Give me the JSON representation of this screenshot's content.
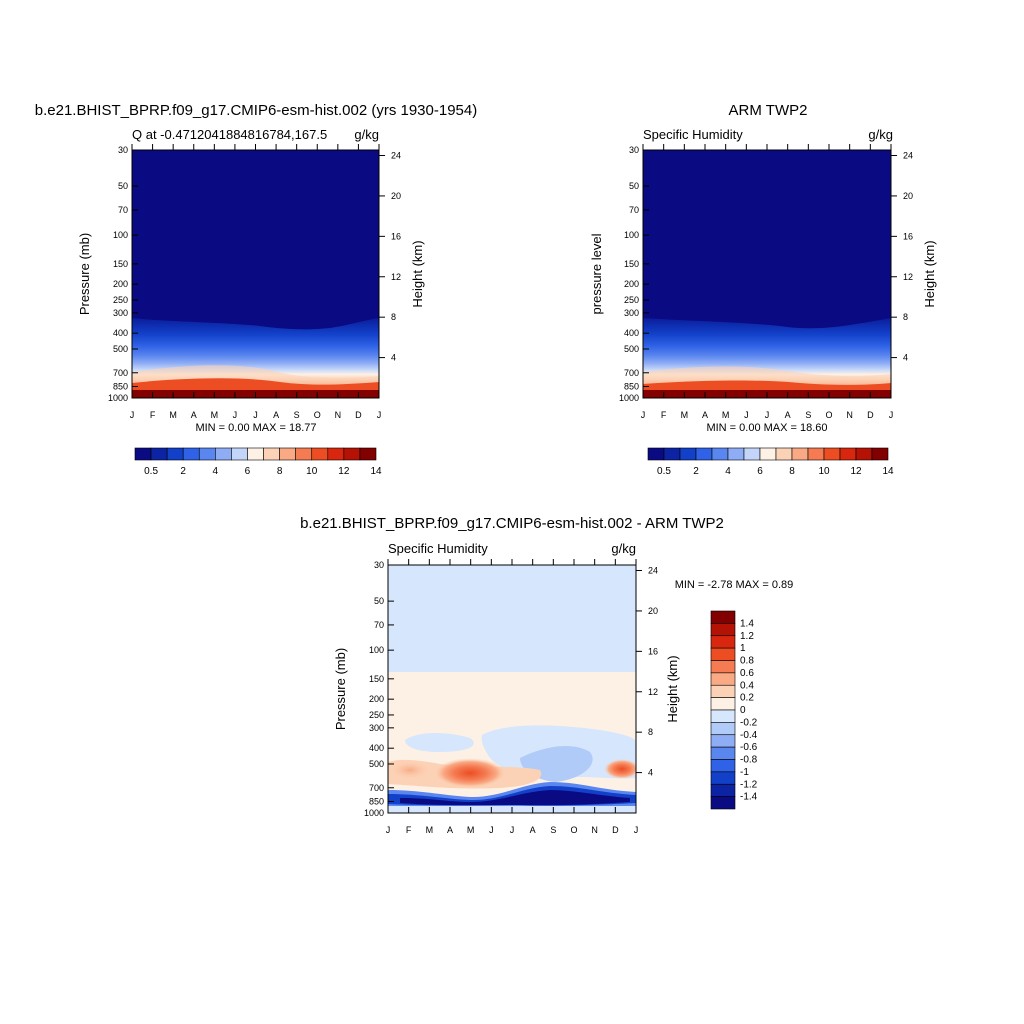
{
  "chart_data": [
    {
      "type": "heatmap",
      "title": "b.e21.BHIST_BPRP.f09_g17.CMIP6-esm-hist.002 (yrs 1930-1954)",
      "left_string": "Q at -0.4712041884816784,167.5",
      "right_string": "g/kg",
      "ylabel": "Pressure (mb)",
      "ylabel_right": "Height (km)",
      "x_ticks": [
        "J",
        "F",
        "M",
        "A",
        "M",
        "J",
        "J",
        "A",
        "S",
        "O",
        "N",
        "D",
        "J"
      ],
      "y_ticks": [
        "30",
        "50",
        "70",
        "100",
        "150",
        "200",
        "250",
        "300",
        "400",
        "500",
        "700",
        "850",
        "1000"
      ],
      "y_ticks_right": [
        "24",
        "20",
        "16",
        "12",
        "8",
        "4"
      ],
      "stats": "MIN =   0.00 MAX =  18.77",
      "colorbar": {
        "labels": [
          "0.5",
          "2",
          "4",
          "6",
          "8",
          "10",
          "12",
          "14"
        ],
        "colors": [
          "#0a0a82",
          "#0c24a4",
          "#1240c8",
          "#2f62e6",
          "#5a86ef",
          "#8fadf5",
          "#c3d6fa",
          "#fdf1e6",
          "#fcd2b6",
          "#f9aa85",
          "#f57b52",
          "#ec4d22",
          "#d9270f",
          "#b51206",
          "#820000"
        ]
      }
    },
    {
      "type": "heatmap",
      "title": "ARM TWP2",
      "left_string": "Specific Humidity",
      "right_string": "g/kg",
      "ylabel": "pressure level",
      "ylabel_right": "Height (km)",
      "x_ticks": [
        "J",
        "F",
        "M",
        "A",
        "M",
        "J",
        "J",
        "A",
        "S",
        "O",
        "N",
        "D",
        "J"
      ],
      "y_ticks": [
        "30",
        "50",
        "70",
        "100",
        "150",
        "200",
        "250",
        "300",
        "400",
        "500",
        "700",
        "850",
        "1000"
      ],
      "y_ticks_right": [
        "24",
        "20",
        "16",
        "12",
        "8",
        "4"
      ],
      "stats": "MIN =   0.00 MAX =  18.60",
      "colorbar": {
        "labels": [
          "0.5",
          "2",
          "4",
          "6",
          "8",
          "10",
          "12",
          "14"
        ],
        "colors": [
          "#0a0a82",
          "#0c24a4",
          "#1240c8",
          "#2f62e6",
          "#5a86ef",
          "#8fadf5",
          "#c3d6fa",
          "#fdf1e6",
          "#fcd2b6",
          "#f9aa85",
          "#f57b52",
          "#ec4d22",
          "#d9270f",
          "#b51206",
          "#820000"
        ]
      }
    },
    {
      "type": "heatmap",
      "title": "b.e21.BHIST_BPRP.f09_g17.CMIP6-esm-hist.002 - ARM TWP2",
      "left_string": "Specific Humidity",
      "right_string": "g/kg",
      "ylabel": "Pressure (mb)",
      "ylabel_right": "Height (km)",
      "x_ticks": [
        "J",
        "F",
        "M",
        "A",
        "M",
        "J",
        "J",
        "A",
        "S",
        "O",
        "N",
        "D",
        "J"
      ],
      "y_ticks": [
        "30",
        "50",
        "70",
        "100",
        "150",
        "200",
        "250",
        "300",
        "400",
        "500",
        "700",
        "850",
        "1000"
      ],
      "y_ticks_right": [
        "24",
        "20",
        "16",
        "12",
        "8",
        "4"
      ],
      "stats": "MIN =  -2.78 MAX =   0.89",
      "colorbar": {
        "labels": [
          "1.4",
          "1.2",
          "1",
          "0.8",
          "0.6",
          "0.4",
          "0.2",
          "0",
          "-0.2",
          "-0.4",
          "-0.6",
          "-0.8",
          "-1",
          "-1.2",
          "-1.4"
        ],
        "colors": [
          "#820000",
          "#b51206",
          "#d9270f",
          "#ec4d22",
          "#f57b52",
          "#f9aa85",
          "#fcd2b6",
          "#fdf1e6",
          "#d6e6fd",
          "#b0cbf8",
          "#8fadf5",
          "#5a86ef",
          "#2f62e6",
          "#1240c8",
          "#0c24a4",
          "#0a0a82"
        ]
      }
    }
  ]
}
